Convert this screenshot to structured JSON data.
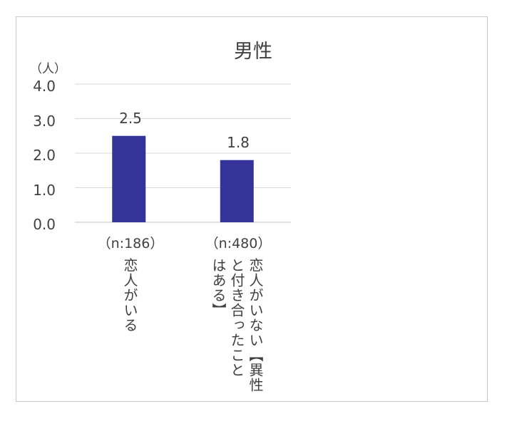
{
  "chart_data": {
    "type": "bar",
    "title": "男性",
    "unit_label": "（人）",
    "ylim": [
      0,
      4
    ],
    "yticks": [
      "0.0",
      "1.0",
      "2.0",
      "3.0",
      "4.0"
    ],
    "grid": true,
    "categories": [
      {
        "n": "（n:186）",
        "label_lines": [
          "恋人がいる"
        ]
      },
      {
        "n": "（n:480）",
        "label_lines": [
          "恋人がいない【異性",
          "と付き合ったこと",
          "はある】"
        ]
      }
    ],
    "values": [
      2.5,
      1.8
    ],
    "value_labels": [
      "2.5",
      "1.8"
    ],
    "bar_color": "#333399",
    "grid_color": "#d9d9d9"
  }
}
